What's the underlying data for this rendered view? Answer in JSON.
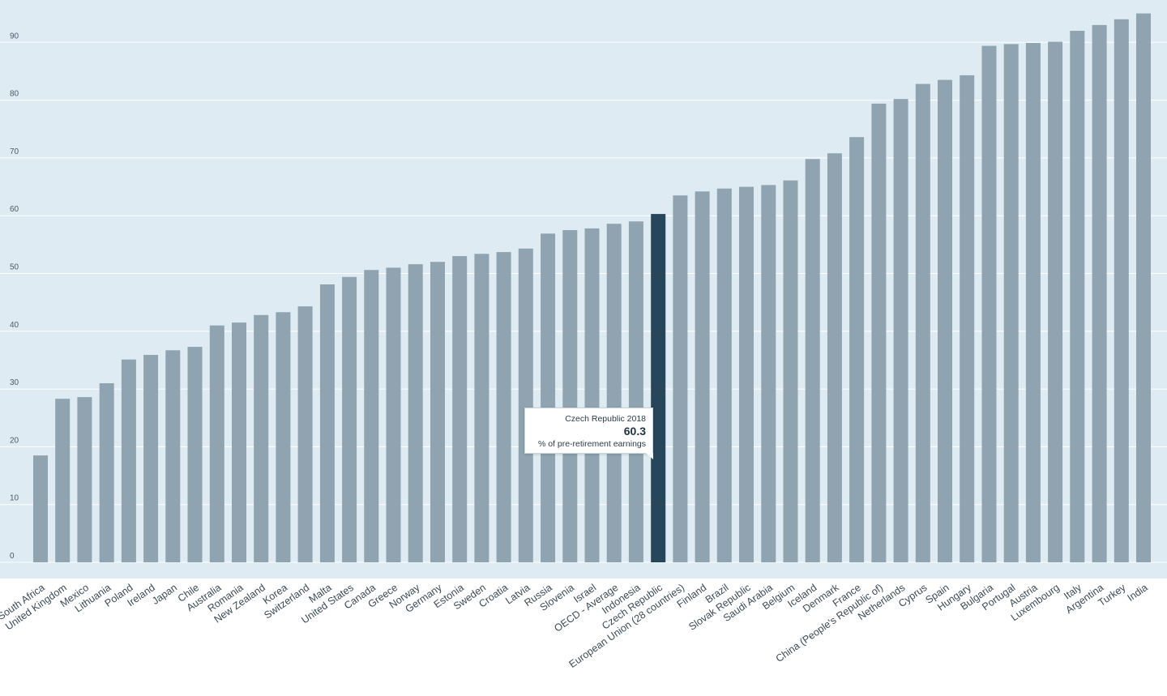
{
  "chart_data": {
    "type": "bar",
    "ylim": [
      0,
      95
    ],
    "yticks": [
      0,
      10,
      20,
      30,
      40,
      50,
      60,
      70,
      80,
      90
    ],
    "grid": true,
    "categories": [
      "South Africa",
      "United Kingdom",
      "Mexico",
      "Lithuania",
      "Poland",
      "Ireland",
      "Japan",
      "Chile",
      "Australia",
      "Romania",
      "New Zealand",
      "Korea",
      "Switzerland",
      "Malta",
      "United States",
      "Canada",
      "Greece",
      "Norway",
      "Germany",
      "Estonia",
      "Sweden",
      "Croatia",
      "Latvia",
      "Russia",
      "Slovenia",
      "Israel",
      "OECD - Average",
      "Indonesia",
      "Czech Republic",
      "European Union (28 countries)",
      "Finland",
      "Brazil",
      "Slovak Republic",
      "Saudi Arabia",
      "Belgium",
      "Iceland",
      "Denmark",
      "France",
      "China (People's Republic of)",
      "Netherlands",
      "Cyprus",
      "Spain",
      "Hungary",
      "Bulgaria",
      "Portugal",
      "Austria",
      "Luxembourg",
      "Italy",
      "Argentina",
      "Turkey",
      "India"
    ],
    "values": [
      18.5,
      28.3,
      28.6,
      31.0,
      35.1,
      35.9,
      36.7,
      37.3,
      41.0,
      41.5,
      42.8,
      43.3,
      44.3,
      48.1,
      49.4,
      50.6,
      51.0,
      51.6,
      52.0,
      53.0,
      53.4,
      53.7,
      54.3,
      56.9,
      57.5,
      57.8,
      58.6,
      59.0,
      60.3,
      63.5,
      64.2,
      64.7,
      65.0,
      65.3,
      66.1,
      69.8,
      70.8,
      73.6,
      79.4,
      80.2,
      82.8,
      83.5,
      84.3,
      89.4,
      89.7,
      89.9,
      90.1,
      92.0,
      93.0,
      94.0,
      95.0
    ],
    "highlight_index": 28,
    "colors": {
      "bar": "#8fa3b0",
      "highlight": "#27465a",
      "plot_background": "#deebf3",
      "gridline": "#ffffff"
    },
    "tooltip": {
      "title": "Czech Republic 2018",
      "value": "60.3",
      "unit": "% of pre-retirement earnings"
    }
  }
}
